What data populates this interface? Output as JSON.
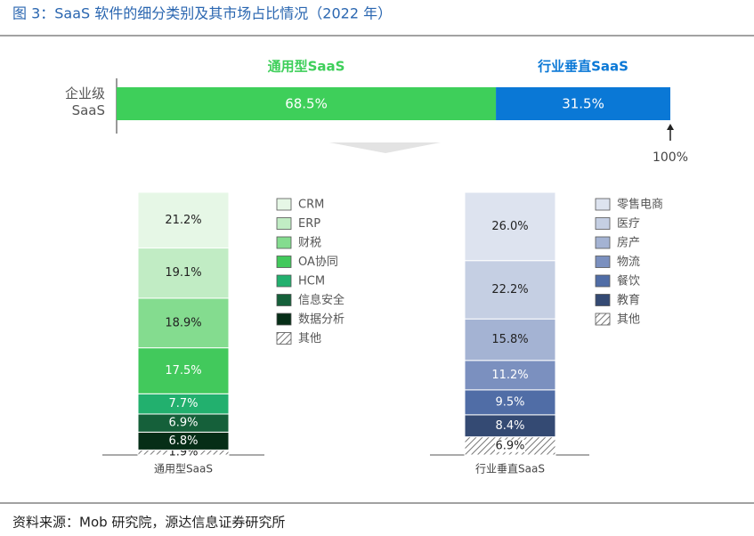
{
  "title": "图 3：SaaS 软件的细分类别及其市场占比情况（2022 年）",
  "source": "资料来源：Mob 研究院，源达信息证券研究所",
  "chart_data": [
    {
      "type": "stacked_hbar",
      "categories": [
        "企业级 SaaS"
      ],
      "xlim": [
        0,
        100
      ],
      "annotation": "100%",
      "series": [
        {
          "name": "通用型SaaS",
          "color": "#3ecf5a",
          "values": [
            68.5
          ],
          "value_labels": [
            "68.5%"
          ]
        },
        {
          "name": "行业垂直SaaS",
          "color": "#0a78d6",
          "values": [
            31.5
          ],
          "value_labels": [
            "31.5%"
          ]
        }
      ]
    },
    {
      "type": "stacked_bar",
      "categories": [
        "通用型SaaS"
      ],
      "ylim": [
        0,
        100
      ],
      "series": [
        {
          "name": "CRM",
          "color": "#e6f7e6",
          "values": [
            21.2
          ],
          "value_labels": [
            "21.2%"
          ]
        },
        {
          "name": "ERP",
          "color": "#c1ecc4",
          "values": [
            19.1
          ],
          "value_labels": [
            "19.1%"
          ]
        },
        {
          "name": "财税",
          "color": "#84dc8f",
          "values": [
            18.9
          ],
          "value_labels": [
            "18.9%"
          ]
        },
        {
          "name": "OA协同",
          "color": "#42c95c",
          "values": [
            17.5
          ],
          "value_labels": [
            "17.5%"
          ]
        },
        {
          "name": "HCM",
          "color": "#22b06e",
          "values": [
            7.7
          ],
          "value_labels": [
            "7.7%"
          ]
        },
        {
          "name": "信息安全",
          "color": "#15603a",
          "values": [
            6.9
          ],
          "value_labels": [
            "6.9%"
          ]
        },
        {
          "name": "数据分析",
          "color": "#062e17",
          "values": [
            6.8
          ],
          "value_labels": [
            "6.8%"
          ]
        },
        {
          "name": "其他",
          "color": "#888888",
          "hatch": true,
          "values": [
            1.9
          ],
          "value_labels": [
            "1.9%"
          ]
        }
      ]
    },
    {
      "type": "stacked_bar",
      "categories": [
        "行业垂直SaaS"
      ],
      "ylim": [
        0,
        100
      ],
      "series": [
        {
          "name": "零售电商",
          "color": "#dde3ef",
          "values": [
            26.0
          ],
          "value_labels": [
            "26.0%"
          ]
        },
        {
          "name": "医疗",
          "color": "#c5cfe3",
          "values": [
            22.2
          ],
          "value_labels": [
            "22.2%"
          ]
        },
        {
          "name": "房产",
          "color": "#a4b3d3",
          "values": [
            15.8
          ],
          "value_labels": [
            "15.8%"
          ]
        },
        {
          "name": "物流",
          "color": "#7b90bf",
          "values": [
            11.2
          ],
          "value_labels": [
            "11.2%"
          ]
        },
        {
          "name": "餐饮",
          "color": "#506da6",
          "values": [
            9.5
          ],
          "value_labels": [
            "9.5%"
          ]
        },
        {
          "name": "教育",
          "color": "#344a73",
          "values": [
            8.4
          ],
          "value_labels": [
            "8.4%"
          ]
        },
        {
          "name": "其他",
          "color": "#888888",
          "hatch": true,
          "values": [
            6.9
          ],
          "value_labels": [
            "6.9%"
          ]
        }
      ]
    }
  ]
}
